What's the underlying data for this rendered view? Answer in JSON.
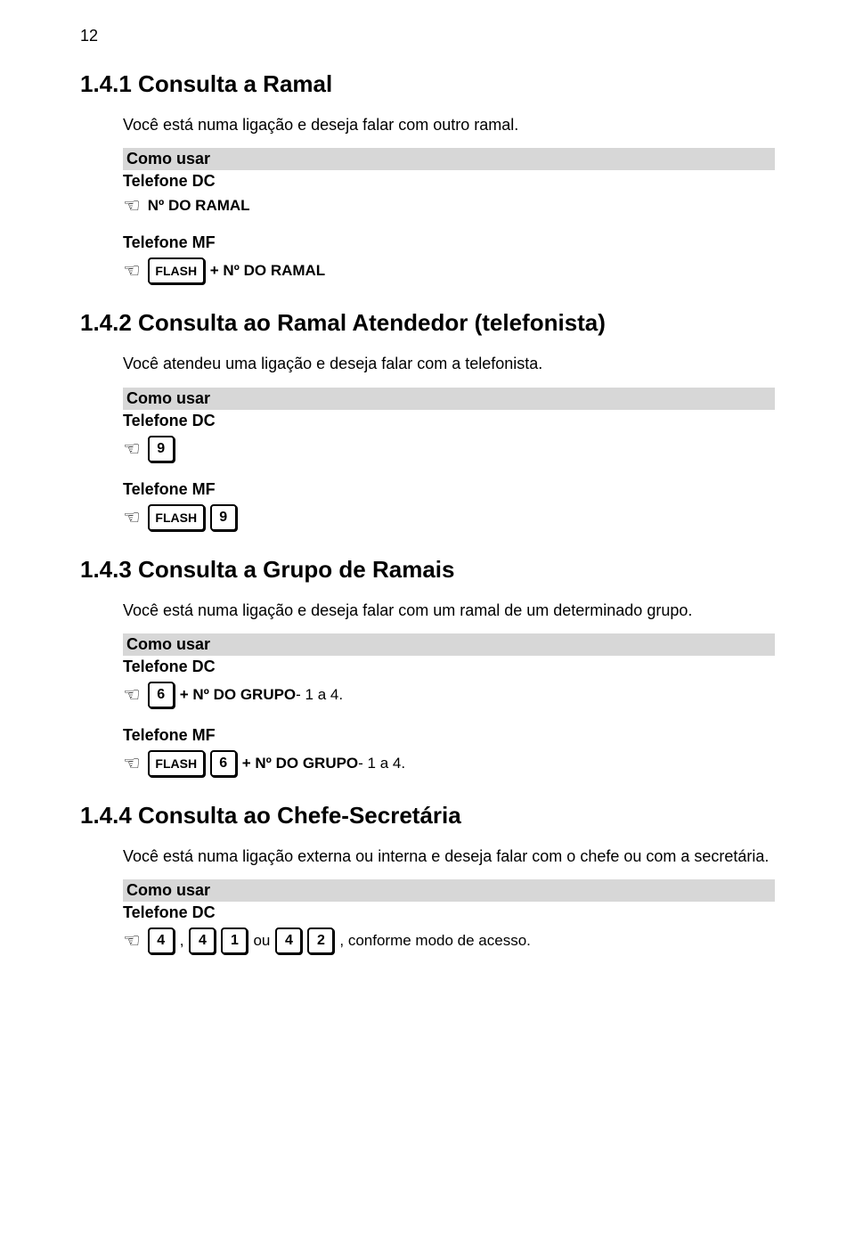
{
  "page_number": "12",
  "como_usar_label": "Como usar",
  "telefone_dc_label": "Telefone DC",
  "telefone_mf_label": "Telefone MF",
  "flash_key": "FLASH",
  "sections": {
    "s1": {
      "title": "1.4.1 Consulta a Ramal",
      "desc": "Você está numa ligação e deseja falar com outro ramal.",
      "dc_text": "Nº DO RAMAL",
      "mf_text": "+ Nº DO RAMAL"
    },
    "s2": {
      "title": "1.4.2 Consulta ao Ramal Atendedor (telefonista)",
      "desc": "Você atendeu uma ligação e deseja falar com a telefonista.",
      "key_9": "9"
    },
    "s3": {
      "title": "1.4.3 Consulta a Grupo de Ramais",
      "desc": "Você está numa ligação e deseja falar com um ramal de um determinado grupo.",
      "key_6": "6",
      "dc_suffix_bold": "+ Nº DO GRUPO",
      "dc_suffix_plain": "- 1 a 4.",
      "mf_suffix_bold": "+ Nº DO GRUPO",
      "mf_suffix_plain": "- 1 a 4."
    },
    "s4": {
      "title": "1.4.4 Consulta ao Chefe-Secretária",
      "desc": "Você está numa ligação externa ou interna e deseja falar com o chefe ou com a secretária.",
      "key_4": "4",
      "key_1": "1",
      "key_2": "2",
      "comma": ",",
      "ou": "ou",
      "tail": ", conforme modo de acesso."
    }
  }
}
